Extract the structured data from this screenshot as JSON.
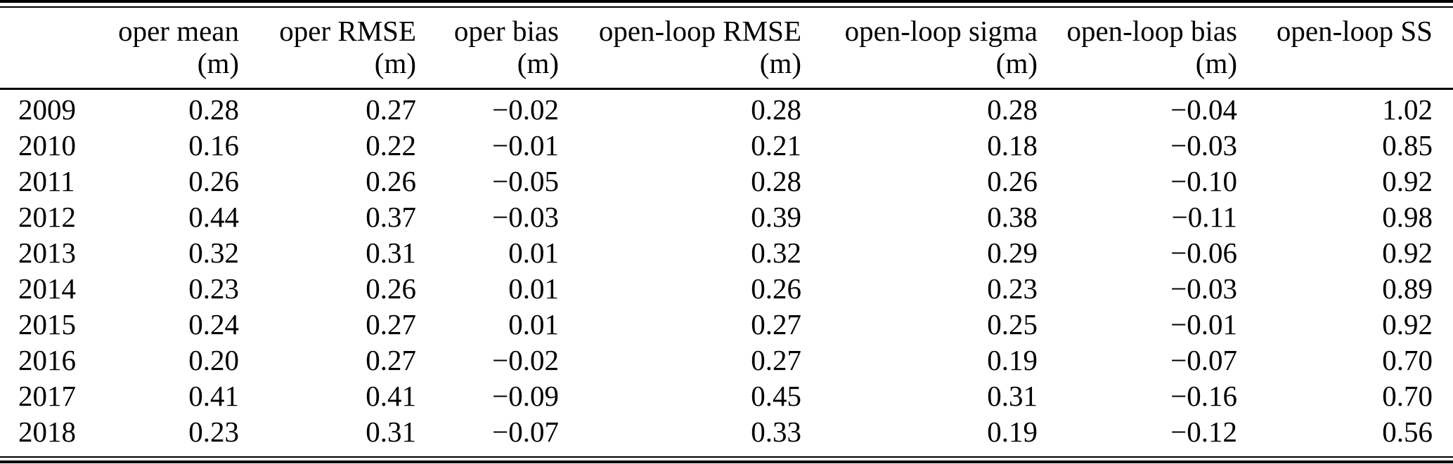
{
  "table": {
    "columns": [
      {
        "key": "year",
        "label": "",
        "unit": ""
      },
      {
        "key": "oper-mean",
        "label": "oper mean",
        "unit": "(m)"
      },
      {
        "key": "oper-rmse",
        "label": "oper RMSE",
        "unit": "(m)"
      },
      {
        "key": "oper-bias",
        "label": "oper bias",
        "unit": "(m)"
      },
      {
        "key": "open-loop-rmse",
        "label": "open-loop RMSE",
        "unit": "(m)"
      },
      {
        "key": "open-loop-sigma",
        "label": "open-loop sigma",
        "unit": "(m)"
      },
      {
        "key": "open-loop-bias",
        "label": "open-loop bias",
        "unit": "(m)"
      },
      {
        "key": "open-loop-ss",
        "label": "open-loop SS",
        "unit": ""
      }
    ],
    "rows": [
      [
        "2009",
        "0.28",
        "0.27",
        "−0.02",
        "0.28",
        "0.28",
        "−0.04",
        "1.02"
      ],
      [
        "2010",
        "0.16",
        "0.22",
        "−0.01",
        "0.21",
        "0.18",
        "−0.03",
        "0.85"
      ],
      [
        "2011",
        "0.26",
        "0.26",
        "−0.05",
        "0.28",
        "0.26",
        "−0.10",
        "0.92"
      ],
      [
        "2012",
        "0.44",
        "0.37",
        "−0.03",
        "0.39",
        "0.38",
        "−0.11",
        "0.98"
      ],
      [
        "2013",
        "0.32",
        "0.31",
        "0.01",
        "0.32",
        "0.29",
        "−0.06",
        "0.92"
      ],
      [
        "2014",
        "0.23",
        "0.26",
        "0.01",
        "0.26",
        "0.23",
        "−0.03",
        "0.89"
      ],
      [
        "2015",
        "0.24",
        "0.27",
        "0.01",
        "0.27",
        "0.25",
        "−0.01",
        "0.92"
      ],
      [
        "2016",
        "0.20",
        "0.27",
        "−0.02",
        "0.27",
        "0.19",
        "−0.07",
        "0.70"
      ],
      [
        "2017",
        "0.41",
        "0.41",
        "−0.09",
        "0.45",
        "0.31",
        "−0.16",
        "0.70"
      ],
      [
        "2018",
        "0.23",
        "0.31",
        "−0.07",
        "0.33",
        "0.19",
        "−0.12",
        "0.56"
      ]
    ],
    "colors": {
      "text": "#000000",
      "background": "#ffffff",
      "rule": "#000000"
    }
  },
  "chart_data": {
    "type": "table",
    "title": "",
    "categories": [
      "2009",
      "2010",
      "2011",
      "2012",
      "2013",
      "2014",
      "2015",
      "2016",
      "2017",
      "2018"
    ],
    "series": [
      {
        "name": "oper mean (m)",
        "values": [
          0.28,
          0.16,
          0.26,
          0.44,
          0.32,
          0.23,
          0.24,
          0.2,
          0.41,
          0.23
        ]
      },
      {
        "name": "oper RMSE (m)",
        "values": [
          0.27,
          0.22,
          0.26,
          0.37,
          0.31,
          0.26,
          0.27,
          0.27,
          0.41,
          0.31
        ]
      },
      {
        "name": "oper bias (m)",
        "values": [
          -0.02,
          -0.01,
          -0.05,
          -0.03,
          0.01,
          0.01,
          0.01,
          -0.02,
          -0.09,
          -0.07
        ]
      },
      {
        "name": "open-loop RMSE (m)",
        "values": [
          0.28,
          0.21,
          0.28,
          0.39,
          0.32,
          0.26,
          0.27,
          0.27,
          0.45,
          0.33
        ]
      },
      {
        "name": "open-loop sigma (m)",
        "values": [
          0.28,
          0.18,
          0.26,
          0.38,
          0.29,
          0.23,
          0.25,
          0.19,
          0.31,
          0.19
        ]
      },
      {
        "name": "open-loop bias (m)",
        "values": [
          -0.04,
          -0.03,
          -0.1,
          -0.11,
          -0.06,
          -0.03,
          -0.01,
          -0.07,
          -0.16,
          -0.12
        ]
      },
      {
        "name": "open-loop SS",
        "values": [
          1.02,
          0.85,
          0.92,
          0.98,
          0.92,
          0.89,
          0.92,
          0.7,
          0.7,
          0.56
        ]
      }
    ]
  }
}
